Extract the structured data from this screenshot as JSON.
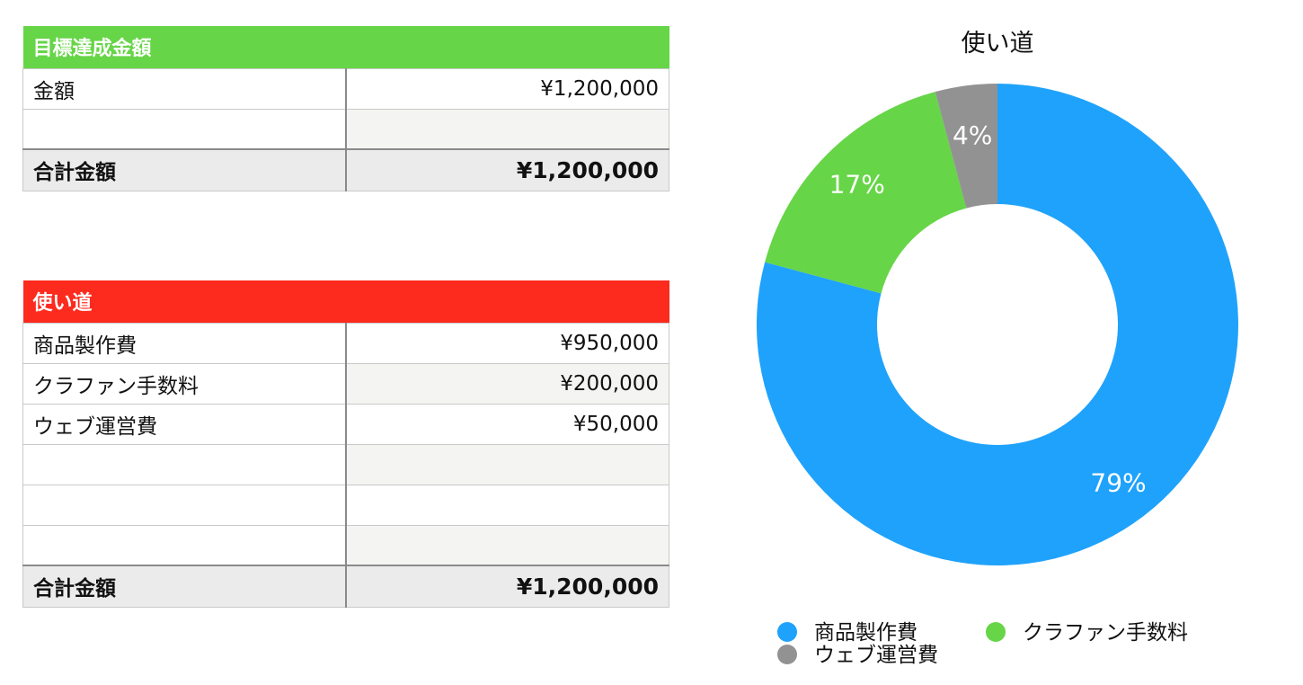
{
  "goal_table": {
    "header": "目標達成金額",
    "rows": [
      {
        "label": "金額",
        "value": "¥1,200,000"
      },
      {
        "label": "",
        "value": ""
      }
    ],
    "total_label": "合計金額",
    "total_value": "¥1,200,000",
    "header_color": "#66d547"
  },
  "usage_table": {
    "header": "使い道",
    "rows": [
      {
        "label": "商品製作費",
        "value": "¥950,000"
      },
      {
        "label": "クラファン手数料",
        "value": "¥200,000"
      },
      {
        "label": "ウェブ運営費",
        "value": "¥50,000"
      },
      {
        "label": "",
        "value": ""
      },
      {
        "label": "",
        "value": ""
      },
      {
        "label": "",
        "value": ""
      }
    ],
    "total_label": "合計金額",
    "total_value": "¥1,200,000",
    "header_color": "#fd2a1e"
  },
  "chart_data": {
    "type": "pie",
    "title": "使い道",
    "donut": true,
    "slices": [
      {
        "label": "商品製作費",
        "value": 950000,
        "percent_label": "79%",
        "color": "#1fa2fb"
      },
      {
        "label": "クラファン手数料",
        "value": 200000,
        "percent_label": "17%",
        "color": "#66d547"
      },
      {
        "label": "ウェブ運営費",
        "value": 50000,
        "percent_label": "4%",
        "color": "#929292"
      }
    ],
    "legend_position": "bottom"
  }
}
